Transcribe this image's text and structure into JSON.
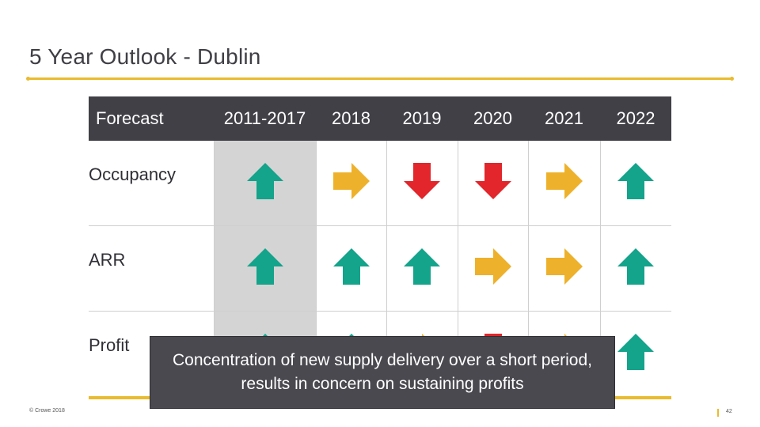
{
  "slide": {
    "title": "5 Year Outlook - Dublin",
    "accent_color": "#e9bb2e"
  },
  "table": {
    "header_label": "Forecast",
    "columns": [
      "2011-2017",
      "2018",
      "2019",
      "2020",
      "2021",
      "2022"
    ],
    "rows": [
      {
        "label": "Occupancy",
        "trends": [
          "up",
          "right",
          "down",
          "down",
          "right",
          "up"
        ]
      },
      {
        "label": "ARR",
        "trends": [
          "up",
          "up",
          "up",
          "right",
          "right",
          "up"
        ]
      },
      {
        "label": "Profit",
        "trends": [
          "up",
          "up",
          "right",
          "down",
          "right",
          "up"
        ]
      }
    ]
  },
  "arrow_colors": {
    "up": "#14a38b",
    "right": "#eeb12b",
    "down": "#e2262b"
  },
  "callout": {
    "text": "Concentration of new supply delivery over a short period, results in concern on sustaining profits"
  },
  "footer": {
    "copyright": "© Crowe 2018",
    "page_number": "42"
  }
}
